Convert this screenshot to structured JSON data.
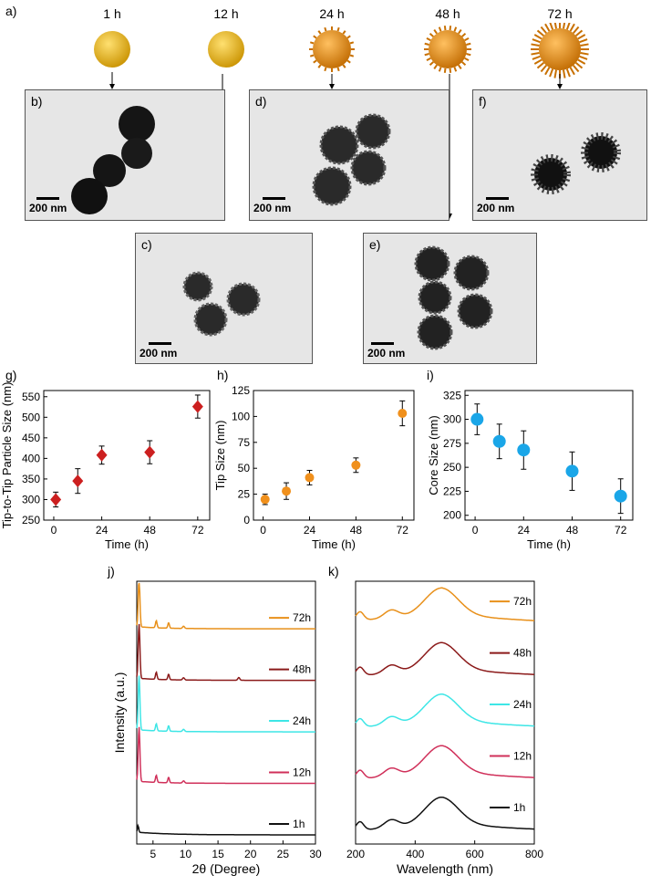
{
  "panel_a": {
    "label": "a)",
    "times": [
      "1 h",
      "12 h",
      "24 h",
      "48 h",
      "72 h"
    ]
  },
  "tem": [
    {
      "label": "b)",
      "scale": "200 nm"
    },
    {
      "label": "c)",
      "scale": "200 nm"
    },
    {
      "label": "d)",
      "scale": "200 nm"
    },
    {
      "label": "e)",
      "scale": "200 nm"
    },
    {
      "label": "f)",
      "scale": "200 nm"
    }
  ],
  "colors": {
    "g": "#cc1f1f",
    "h": "#f0901c",
    "i": "#1aa6e8",
    "s72": "#e8901a",
    "s48": "#8b1a1a",
    "s24": "#3ee6e6",
    "s12": "#d0305a",
    "s1": "#111111"
  },
  "chart_data": [
    {
      "id": "g",
      "label": "g)",
      "type": "scatter",
      "xlabel": "Time (h)",
      "ylabel": "Tip-to-Tip Particle Size (nm)",
      "x": [
        1,
        12,
        24,
        48,
        72
      ],
      "y": [
        300,
        345,
        408,
        415,
        526
      ],
      "err": [
        18,
        30,
        22,
        28,
        28
      ],
      "xticks": [
        0,
        24,
        48,
        72
      ],
      "yticks": [
        250,
        300,
        350,
        400,
        450,
        500,
        550
      ],
      "xlim": [
        -5,
        78
      ],
      "ylim": [
        250,
        565
      ],
      "marker": "diamond"
    },
    {
      "id": "h",
      "label": "h)",
      "type": "scatter",
      "xlabel": "Time (h)",
      "ylabel": "Tip Size (nm)",
      "x": [
        1,
        12,
        24,
        48,
        72
      ],
      "y": [
        20,
        28,
        41,
        53,
        103
      ],
      "err": [
        5,
        8,
        7,
        7,
        12
      ],
      "xticks": [
        0,
        24,
        48,
        72
      ],
      "yticks": [
        0,
        25,
        50,
        75,
        100,
        125
      ],
      "xlim": [
        -5,
        78
      ],
      "ylim": [
        0,
        125
      ],
      "marker": "circle"
    },
    {
      "id": "i",
      "label": "i)",
      "type": "scatter",
      "xlabel": "Time (h)",
      "ylabel": "Core Size (nm)",
      "x": [
        1,
        12,
        24,
        48,
        72
      ],
      "y": [
        300,
        277,
        268,
        246,
        220
      ],
      "err": [
        16,
        18,
        20,
        20,
        18
      ],
      "xticks": [
        0,
        24,
        48,
        72
      ],
      "yticks": [
        200,
        225,
        250,
        275,
        300,
        325
      ],
      "xlim": [
        -5,
        78
      ],
      "ylim": [
        195,
        330
      ],
      "marker": "circle"
    },
    {
      "id": "j",
      "label": "j)",
      "type": "line",
      "xlabel": "2θ (Degree)",
      "ylabel": "Intensity (a.u.)",
      "xticks": [
        5,
        10,
        15,
        20,
        25,
        30
      ],
      "xlim": [
        2.5,
        30
      ],
      "series": [
        {
          "name": "72h",
          "offset": 4,
          "color_key": "s72"
        },
        {
          "name": "48h",
          "offset": 3,
          "color_key": "s48"
        },
        {
          "name": "24h",
          "offset": 2,
          "color_key": "s24"
        },
        {
          "name": "12h",
          "offset": 1,
          "color_key": "s12"
        },
        {
          "name": "1h",
          "offset": 0,
          "color_key": "s1"
        }
      ]
    },
    {
      "id": "k",
      "label": "k)",
      "type": "line",
      "xlabel": "Wavelength (nm)",
      "ylabel": "",
      "xticks": [
        200,
        400,
        600,
        800
      ],
      "xlim": [
        200,
        800
      ],
      "series": [
        {
          "name": "72h",
          "offset": 4,
          "color_key": "s72"
        },
        {
          "name": "48h",
          "offset": 3,
          "color_key": "s48"
        },
        {
          "name": "24h",
          "offset": 2,
          "color_key": "s24"
        },
        {
          "name": "12h",
          "offset": 1,
          "color_key": "s12"
        },
        {
          "name": "1h",
          "offset": 0,
          "color_key": "s1"
        }
      ]
    }
  ]
}
